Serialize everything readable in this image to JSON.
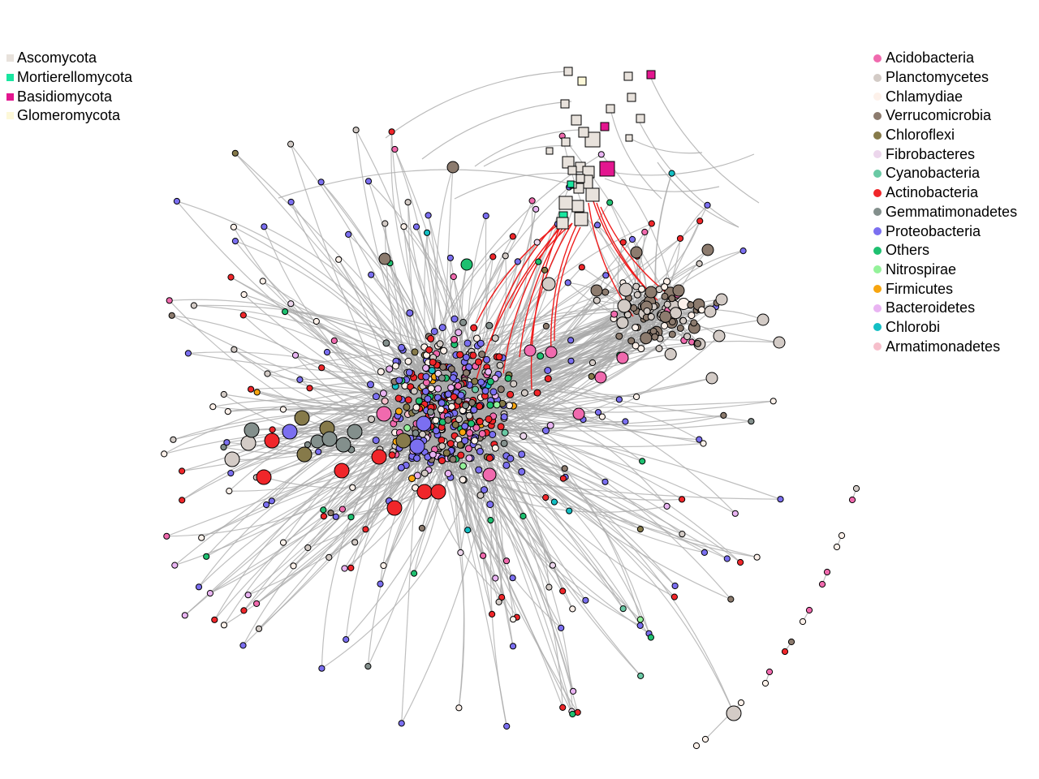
{
  "fungal_legend": [
    {
      "label": "Ascomycota",
      "color": "#e8e2dc"
    },
    {
      "label": "Mortierellomycota",
      "color": "#19e6a0"
    },
    {
      "label": "Basidiomycota",
      "color": "#e3168f"
    },
    {
      "label": "Glomeromycota",
      "color": "#fdf8d8"
    }
  ],
  "bacterial_legend": [
    {
      "label": "Acidobacteria",
      "color": "#f06aae"
    },
    {
      "label": "Planctomycetes",
      "color": "#d3cbc6"
    },
    {
      "label": "Chlamydiae",
      "color": "#fdf1ea"
    },
    {
      "label": "Verrucomicrobia",
      "color": "#8c7b6e"
    },
    {
      "label": "Chloroflexi",
      "color": "#867a4a"
    },
    {
      "label": "Fibrobacteres",
      "color": "#ecd6ec"
    },
    {
      "label": "Cyanobacteria",
      "color": "#69c9a4"
    },
    {
      "label": "Actinobacteria",
      "color": "#f0262a"
    },
    {
      "label": "Gemmatimonadetes",
      "color": "#838f8c"
    },
    {
      "label": "Proteobacteria",
      "color": "#7b6ff0"
    },
    {
      "label": "Others",
      "color": "#1ec070"
    },
    {
      "label": "Nitrospirae",
      "color": "#94f29a"
    },
    {
      "label": "Firmicutes",
      "color": "#f7a50f"
    },
    {
      "label": "Bacteroidetes",
      "color": "#e9b4f2"
    },
    {
      "label": "Chlorobi",
      "color": "#13bfc4"
    },
    {
      "label": "Armatimonadetes",
      "color": "#f6bfcb"
    }
  ],
  "edge_colors": {
    "default": "#aaaaaa",
    "fungal_bacterial": "#ee1c1c"
  }
}
